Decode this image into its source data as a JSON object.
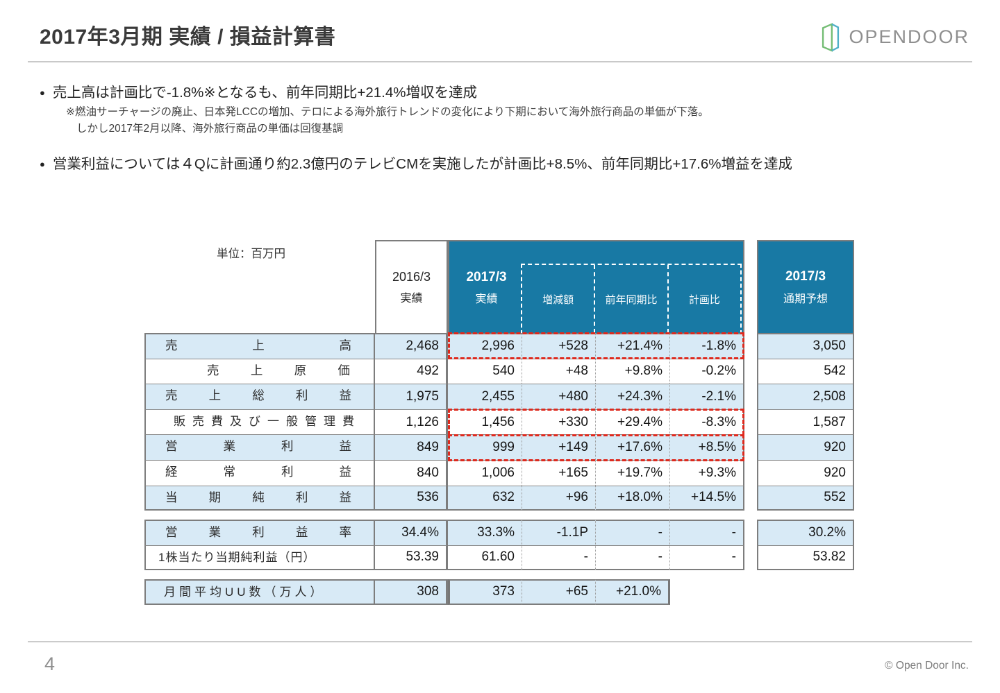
{
  "page": {
    "number": "4",
    "copyright": "© Open Door Inc."
  },
  "header": {
    "title": "2017年3月期 実績 / 損益計算書",
    "logo_text": "OPENDOOR"
  },
  "bullets": [
    {
      "text": "売上高は計画比で-1.8%※となるも、前年同期比+21.4%増収を達成",
      "notes": [
        "※燃油サーチャージの廃止、日本発LCCの増加、テロによる海外旅行トレンドの変化により下期において海外旅行商品の単価が下落。",
        "しかし2017年2月以降、海外旅行商品の単価は回復基調"
      ]
    },
    {
      "text": "営業利益については４Qに計画通り約2.3億円のテレビCMを実施したが計画比+8.5%、前年同期比+17.6%増益を達成",
      "notes": []
    }
  ],
  "table": {
    "unit_label": "単位：百万円",
    "columns": {
      "prior_year": "2016/3",
      "prior_sub": "実績",
      "current_year": "2017/3",
      "current_sub": "実績",
      "delta": "増減額",
      "yoy": "前年同期比",
      "vs_plan": "計画比",
      "forecast_year": "2017/3",
      "forecast_sub": "通期予想"
    },
    "rows": [
      {
        "label": "売上高",
        "indent": false,
        "highlight": true,
        "red_box": true,
        "values": [
          "2,468",
          "2,996",
          "+528",
          "+21.4%",
          "-1.8%",
          "3,050"
        ]
      },
      {
        "label": "売上原価",
        "indent": true,
        "highlight": false,
        "red_box": false,
        "values": [
          "492",
          "540",
          "+48",
          "+9.8%",
          "-0.2%",
          "542"
        ]
      },
      {
        "label": "売上総利益",
        "indent": false,
        "highlight": true,
        "red_box": false,
        "values": [
          "1,975",
          "2,455",
          "+480",
          "+24.3%",
          "-2.1%",
          "2,508"
        ]
      },
      {
        "label": "販売費及び一般管理費",
        "indent": true,
        "highlight": false,
        "red_box": true,
        "values": [
          "1,126",
          "1,456",
          "+330",
          "+29.4%",
          "-8.3%",
          "1,587"
        ]
      },
      {
        "label": "営業利益",
        "indent": false,
        "highlight": true,
        "red_box": true,
        "values": [
          "849",
          "999",
          "+149",
          "+17.6%",
          "+8.5%",
          "920"
        ]
      },
      {
        "label": "経常利益",
        "indent": false,
        "highlight": false,
        "red_box": false,
        "values": [
          "840",
          "1,006",
          "+165",
          "+19.7%",
          "+9.3%",
          "920"
        ]
      },
      {
        "label": "当期純利益",
        "indent": false,
        "highlight": true,
        "red_box": false,
        "values": [
          "536",
          "632",
          "+96",
          "+18.0%",
          "+14.5%",
          "552"
        ]
      }
    ],
    "ratio_rows": [
      {
        "label": "営業利益率",
        "highlight": true,
        "values": [
          "34.4%",
          "33.3%",
          "-1.1P",
          "-",
          "-",
          "30.2%"
        ]
      },
      {
        "label": "1株当たり当期純利益（円）",
        "highlight": false,
        "values": [
          "53.39",
          "61.60",
          "-",
          "-",
          "-",
          "53.82"
        ]
      }
    ],
    "uu_row": {
      "label": "月間平均UU数（万人）",
      "highlight": true,
      "values": [
        "308",
        "373",
        "+65",
        "+21.0%"
      ]
    }
  }
}
